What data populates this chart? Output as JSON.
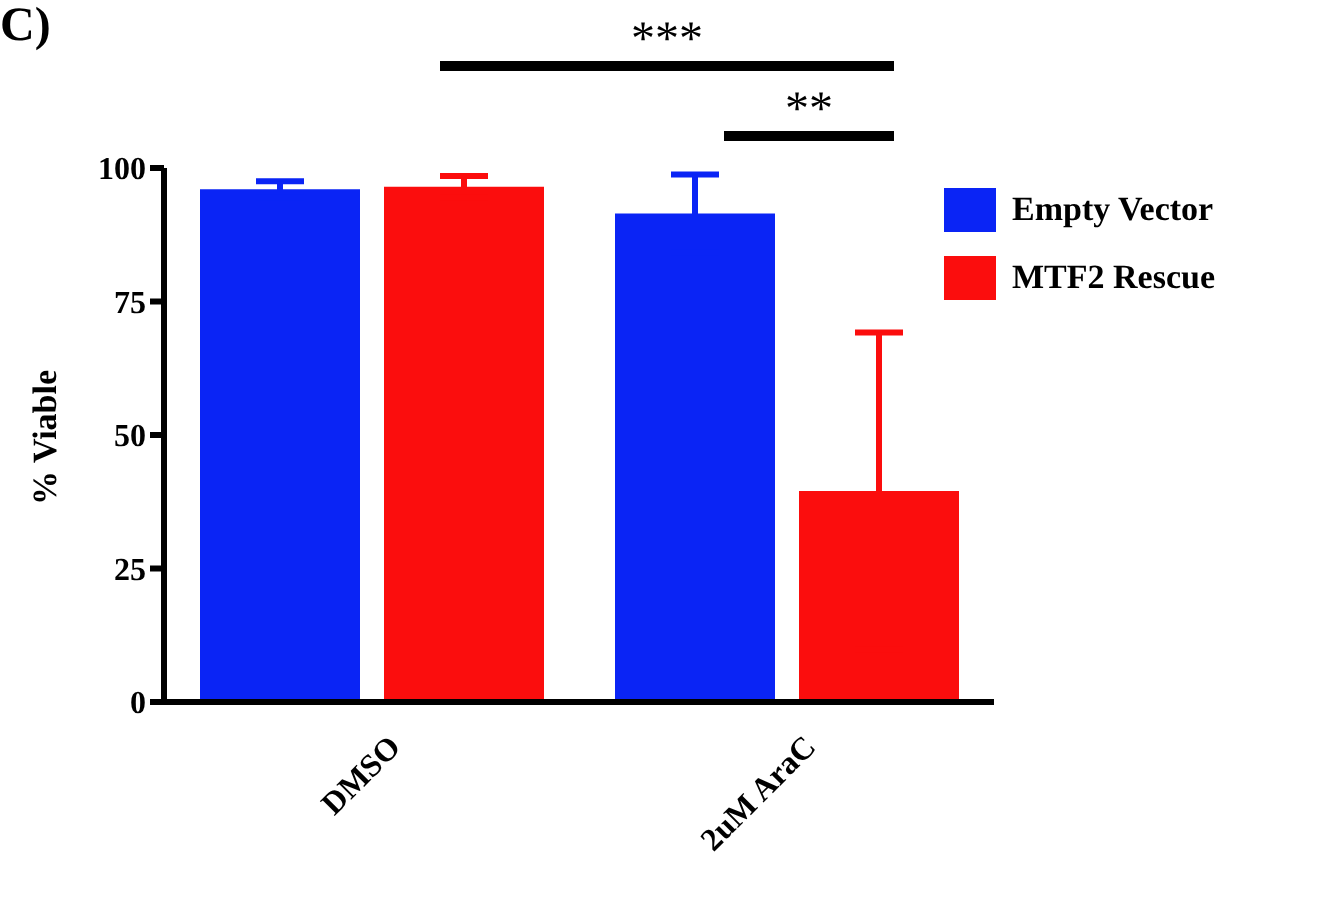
{
  "chart_data": {
    "type": "bar",
    "title": "C)",
    "ylabel": "% Viable",
    "categories": [
      "DMSO",
      "2uM AraC"
    ],
    "series": [
      {
        "name": "Empty Vector",
        "color": "#0a24f5",
        "values": [
          96,
          91.5
        ],
        "errors": [
          1.5,
          7.3
        ]
      },
      {
        "name": "MTF2 Rescue",
        "color": "#fb0d0d",
        "values": [
          96.5,
          39.5
        ],
        "errors": [
          2,
          29.7
        ]
      }
    ],
    "ylim": [
      0,
      100
    ],
    "yticks": [
      0,
      25,
      50,
      75,
      100
    ],
    "legend": "top right",
    "annotations": [
      "***",
      "**"
    ]
  }
}
